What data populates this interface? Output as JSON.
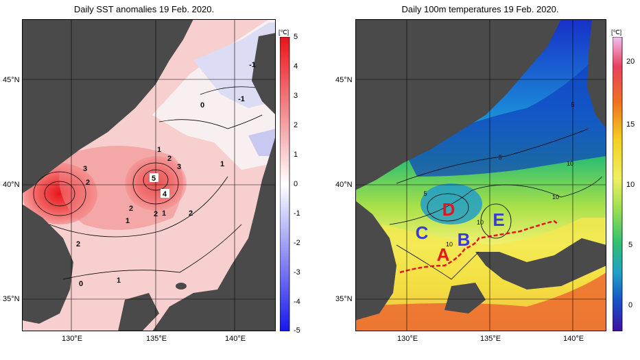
{
  "left_panel": {
    "title": "Daily SST anomalies 19 Feb. 2020.",
    "unit": "[℃]",
    "lat_labels": [
      "45°N",
      "40°N",
      "35°N"
    ],
    "lon_labels": [
      "130°E",
      "135°E",
      "140°E"
    ],
    "colorbar_ticks": [
      "5",
      "4",
      "3",
      "2",
      "1",
      "0",
      "-1",
      "-2",
      "-3",
      "-4",
      "-5"
    ],
    "contour_labels": [
      "5",
      "4",
      "3",
      "3",
      "2",
      "2",
      "2",
      "2",
      "2",
      "2",
      "1",
      "1",
      "1",
      "1",
      "1",
      "0",
      "0",
      "-1",
      "-1"
    ],
    "colors": {
      "high": "#e8141b",
      "zero": "#ffffff",
      "low": "#1818e8",
      "land": "#4a4a4a"
    }
  },
  "right_panel": {
    "title": "Daily 100m temperatures 19 Feb. 2020.",
    "unit": "[℃]",
    "lat_labels": [
      "45°N",
      "40°N",
      "35°N"
    ],
    "lon_labels": [
      "130°E",
      "135°E",
      "140°E"
    ],
    "colorbar_ticks": [
      "20",
      "15",
      "10",
      "5",
      "0"
    ],
    "contour_labels": [
      "5",
      "5",
      "5",
      "10",
      "10",
      "10",
      "10"
    ],
    "region_labels": [
      {
        "text": "A",
        "color": "#e8141b"
      },
      {
        "text": "B",
        "color": "#3a3ad8"
      },
      {
        "text": "C",
        "color": "#3a3ad8"
      },
      {
        "text": "D",
        "color": "#e8141b"
      },
      {
        "text": "E",
        "color": "#3a3ad8"
      }
    ],
    "front_color": "#e8141b"
  }
}
